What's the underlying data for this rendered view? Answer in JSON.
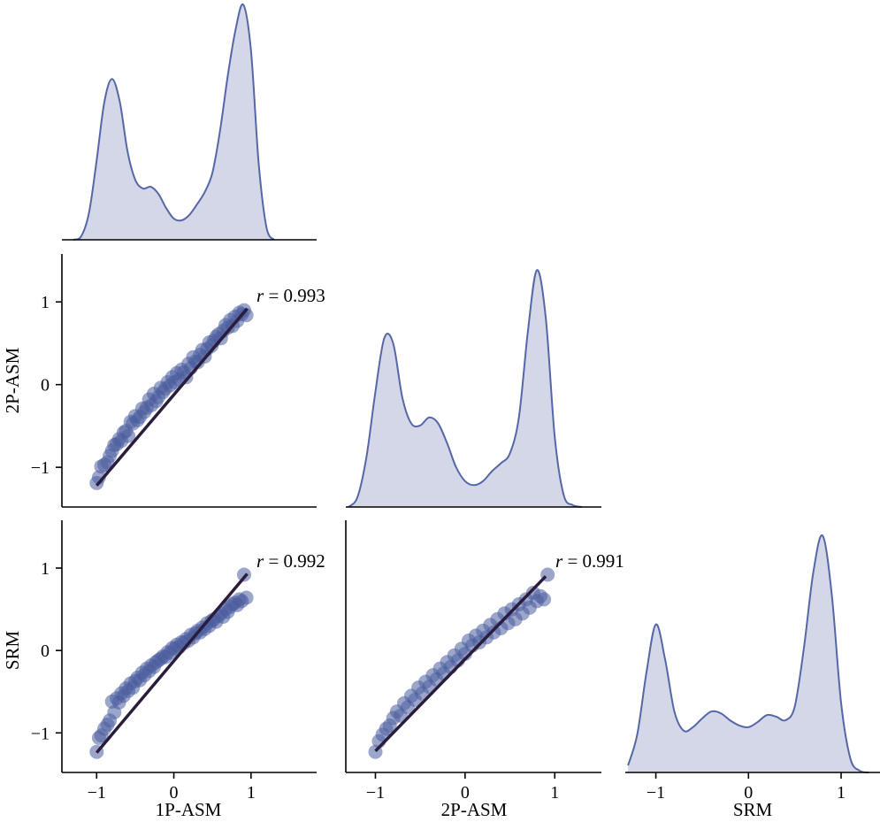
{
  "figure": {
    "variables": [
      "1P-ASM",
      "2P-ASM",
      "SRM"
    ],
    "tick_values": [
      -1,
      0,
      1
    ],
    "tick_labels": [
      "−1",
      "0",
      "1"
    ],
    "colors": {
      "points": "#4a5d9e",
      "kde_fill": "#cfd3e4",
      "kde_line": "#5567a6",
      "regression": "#2a1d3c"
    }
  },
  "chart_data": [
    {
      "type": "area",
      "panel": "diag-1P-ASM",
      "title": "",
      "x": [
        -1.3,
        -1.2,
        -1.1,
        -1.0,
        -0.9,
        -0.8,
        -0.7,
        -0.6,
        -0.5,
        -0.4,
        -0.3,
        -0.2,
        -0.1,
        0.0,
        0.1,
        0.2,
        0.3,
        0.4,
        0.5,
        0.6,
        0.7,
        0.8,
        0.9,
        1.0,
        1.1,
        1.2,
        1.3
      ],
      "y": [
        0.0,
        0.02,
        0.15,
        0.45,
        0.78,
        0.91,
        0.78,
        0.5,
        0.34,
        0.29,
        0.3,
        0.26,
        0.18,
        0.12,
        0.11,
        0.14,
        0.2,
        0.27,
        0.38,
        0.62,
        0.93,
        1.19,
        1.33,
        1.07,
        0.43,
        0.07,
        0.0
      ],
      "xlim": [
        -1.45,
        1.85
      ]
    },
    {
      "type": "scatter",
      "panel": "2P-ASM-vs-1P-ASM",
      "xlabel": "",
      "ylabel": "2P-ASM",
      "annotation": "r = 0.993",
      "xlim": [
        -1.45,
        1.85
      ],
      "ylim": [
        -1.48,
        1.58
      ],
      "x": [
        -1.0,
        -0.97,
        -0.94,
        -0.9,
        -0.86,
        -0.83,
        -0.8,
        -0.77,
        -0.74,
        -0.71,
        -0.68,
        -0.65,
        -0.62,
        -0.59,
        -0.56,
        -0.53,
        -0.5,
        -0.47,
        -0.44,
        -0.41,
        -0.38,
        -0.35,
        -0.32,
        -0.29,
        -0.26,
        -0.23,
        -0.2,
        -0.17,
        -0.14,
        -0.11,
        -0.08,
        -0.05,
        -0.02,
        0.01,
        0.04,
        0.07,
        0.1,
        0.13,
        0.16,
        0.19,
        0.22,
        0.25,
        0.28,
        0.31,
        0.34,
        0.37,
        0.4,
        0.43,
        0.46,
        0.49,
        0.52,
        0.55,
        0.58,
        0.61,
        0.64,
        0.67,
        0.7,
        0.73,
        0.76,
        0.79,
        0.82,
        0.85,
        0.88,
        0.91,
        0.94
      ],
      "y": [
        -1.19,
        -1.12,
        -0.99,
        -0.97,
        -0.94,
        -0.86,
        -0.8,
        -0.73,
        -0.72,
        -0.66,
        -0.68,
        -0.58,
        -0.56,
        -0.62,
        -0.45,
        -0.47,
        -0.38,
        -0.43,
        -0.39,
        -0.29,
        -0.33,
        -0.28,
        -0.18,
        -0.25,
        -0.11,
        -0.2,
        -0.15,
        -0.04,
        -0.09,
        -0.05,
        0.03,
        -0.01,
        0.09,
        0.03,
        0.14,
        0.06,
        0.18,
        0.15,
        0.09,
        0.25,
        0.2,
        0.33,
        0.28,
        0.27,
        0.36,
        0.42,
        0.34,
        0.43,
        0.51,
        0.47,
        0.53,
        0.58,
        0.61,
        0.56,
        0.65,
        0.72,
        0.69,
        0.78,
        0.71,
        0.82,
        0.77,
        0.87,
        0.85,
        0.9,
        0.84
      ],
      "regression": {
        "x": [
          -1.0,
          0.95
        ],
        "y": [
          -1.22,
          0.92
        ]
      }
    },
    {
      "type": "area",
      "panel": "diag-2P-ASM",
      "title": "",
      "x": [
        -1.3,
        -1.2,
        -1.1,
        -1.0,
        -0.9,
        -0.8,
        -0.7,
        -0.6,
        -0.5,
        -0.4,
        -0.3,
        -0.2,
        -0.1,
        0.0,
        0.1,
        0.2,
        0.3,
        0.4,
        0.5,
        0.6,
        0.7,
        0.8,
        0.9,
        1.0,
        1.1,
        1.2,
        1.3
      ],
      "y": [
        0.0,
        0.05,
        0.25,
        0.58,
        0.85,
        0.82,
        0.55,
        0.42,
        0.41,
        0.45,
        0.42,
        0.32,
        0.2,
        0.13,
        0.11,
        0.13,
        0.18,
        0.22,
        0.27,
        0.45,
        0.88,
        1.19,
        0.95,
        0.35,
        0.06,
        0.01,
        0.0
      ],
      "xlim": [
        -1.33,
        1.52
      ]
    },
    {
      "type": "scatter",
      "panel": "SRM-vs-1P-ASM",
      "xlabel": "1P-ASM",
      "ylabel": "SRM",
      "annotation": "r = 0.992",
      "xlim": [
        -1.45,
        1.85
      ],
      "ylim": [
        -1.48,
        1.58
      ],
      "x": [
        -1.0,
        -0.97,
        -0.94,
        -0.9,
        -0.86,
        -0.83,
        -0.8,
        -0.77,
        -0.74,
        -0.71,
        -0.68,
        -0.65,
        -0.62,
        -0.59,
        -0.56,
        -0.53,
        -0.5,
        -0.47,
        -0.44,
        -0.41,
        -0.38,
        -0.35,
        -0.32,
        -0.29,
        -0.26,
        -0.23,
        -0.2,
        -0.17,
        -0.14,
        -0.11,
        -0.08,
        -0.05,
        -0.02,
        0.01,
        0.04,
        0.07,
        0.1,
        0.13,
        0.16,
        0.19,
        0.22,
        0.25,
        0.28,
        0.31,
        0.34,
        0.37,
        0.4,
        0.43,
        0.46,
        0.49,
        0.52,
        0.55,
        0.58,
        0.61,
        0.64,
        0.67,
        0.7,
        0.73,
        0.76,
        0.79,
        0.82,
        0.85,
        0.88,
        0.91,
        0.94
      ],
      "y": [
        -1.23,
        -1.06,
        -1.03,
        -0.95,
        -0.9,
        -0.85,
        -0.62,
        -0.75,
        -0.58,
        -0.63,
        -0.52,
        -0.55,
        -0.46,
        -0.49,
        -0.4,
        -0.45,
        -0.37,
        -0.33,
        -0.36,
        -0.27,
        -0.3,
        -0.22,
        -0.25,
        -0.18,
        -0.2,
        -0.14,
        -0.12,
        -0.1,
        -0.07,
        -0.08,
        -0.02,
        -0.03,
        0.03,
        0.02,
        0.07,
        0.04,
        0.1,
        0.09,
        0.14,
        0.12,
        0.19,
        0.16,
        0.21,
        0.24,
        0.22,
        0.28,
        0.26,
        0.33,
        0.3,
        0.36,
        0.38,
        0.35,
        0.42,
        0.45,
        0.41,
        0.5,
        0.47,
        0.53,
        0.56,
        0.58,
        0.55,
        0.62,
        0.6,
        0.92,
        0.64
      ],
      "regression": {
        "x": [
          -1.0,
          0.95
        ],
        "y": [
          -1.24,
          0.93
        ]
      }
    },
    {
      "type": "scatter",
      "panel": "SRM-vs-2P-ASM",
      "xlabel": "2P-ASM",
      "ylabel": "",
      "annotation": "r = 0.991",
      "xlim": [
        -1.33,
        1.52
      ],
      "ylim": [
        -1.48,
        1.58
      ],
      "x": [
        -1.0,
        -0.96,
        -0.92,
        -0.88,
        -0.84,
        -0.8,
        -0.76,
        -0.72,
        -0.68,
        -0.64,
        -0.6,
        -0.56,
        -0.52,
        -0.48,
        -0.44,
        -0.4,
        -0.36,
        -0.32,
        -0.28,
        -0.24,
        -0.2,
        -0.16,
        -0.12,
        -0.08,
        -0.04,
        0.0,
        0.04,
        0.08,
        0.12,
        0.16,
        0.2,
        0.24,
        0.28,
        0.32,
        0.36,
        0.4,
        0.44,
        0.48,
        0.52,
        0.56,
        0.6,
        0.64,
        0.68,
        0.72,
        0.76,
        0.8,
        0.84,
        0.88,
        0.92
      ],
      "y": [
        -1.23,
        -1.1,
        -1.02,
        -0.95,
        -0.91,
        -0.82,
        -0.74,
        -0.79,
        -0.64,
        -0.69,
        -0.55,
        -0.6,
        -0.45,
        -0.52,
        -0.38,
        -0.44,
        -0.3,
        -0.35,
        -0.22,
        -0.28,
        -0.14,
        -0.2,
        -0.06,
        -0.12,
        0.02,
        -0.04,
        0.12,
        0.06,
        0.18,
        0.1,
        0.24,
        0.16,
        0.31,
        0.22,
        0.38,
        0.27,
        0.45,
        0.33,
        0.5,
        0.38,
        0.56,
        0.45,
        0.62,
        0.52,
        0.7,
        0.6,
        0.66,
        0.62,
        0.92
      ],
      "regression": {
        "x": [
          -1.0,
          0.9
        ],
        "y": [
          -1.22,
          0.9
        ]
      }
    },
    {
      "type": "area",
      "panel": "diag-SRM",
      "xlabel": "SRM",
      "title": "",
      "x": [
        -1.3,
        -1.2,
        -1.1,
        -1.0,
        -0.9,
        -0.8,
        -0.7,
        -0.6,
        -0.5,
        -0.4,
        -0.3,
        -0.2,
        -0.1,
        0.0,
        0.1,
        0.2,
        0.3,
        0.4,
        0.5,
        0.6,
        0.7,
        0.8,
        0.9,
        1.0,
        1.1,
        1.2,
        1.3
      ],
      "y": [
        0.04,
        0.22,
        0.58,
        0.85,
        0.65,
        0.35,
        0.24,
        0.26,
        0.31,
        0.35,
        0.34,
        0.3,
        0.27,
        0.26,
        0.29,
        0.33,
        0.32,
        0.3,
        0.38,
        0.72,
        1.15,
        1.36,
        1.02,
        0.4,
        0.08,
        0.01,
        0.0
      ],
      "xlim": [
        -1.33,
        1.42
      ]
    }
  ]
}
